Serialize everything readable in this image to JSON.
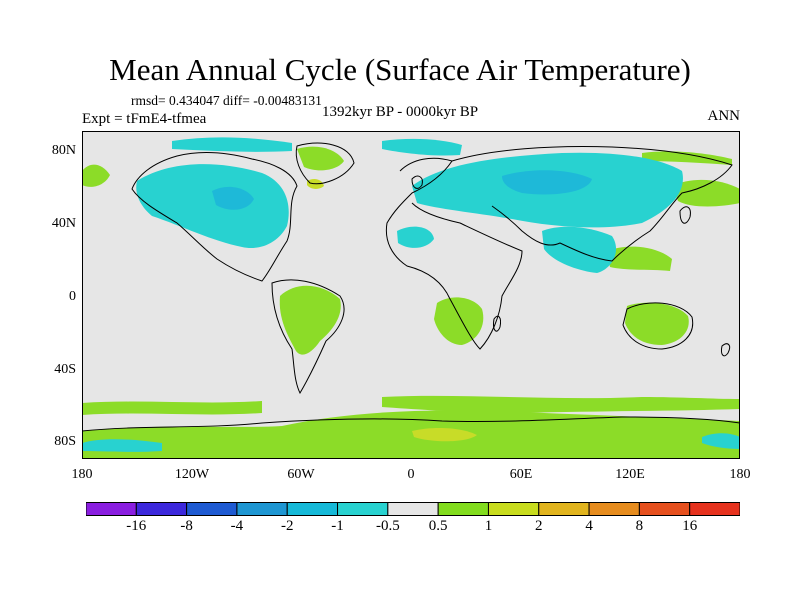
{
  "title": "Mean Annual Cycle (Surface Air Temperature)",
  "stats_text": "rmsd= 0.434047 diff= -0.00483131",
  "experiment_text": "Expt = tFmE4-tfmea",
  "period_text": "1392kyr BP - 0000kyr BP",
  "season": "ANN",
  "lat_ticks": [
    "80N",
    "40N",
    "0",
    "40S",
    "80S"
  ],
  "lon_ticks": [
    "180",
    "120W",
    "60W",
    "0",
    "60E",
    "120E",
    "180"
  ],
  "colorbar": {
    "labels": [
      "-16",
      "-8",
      "-4",
      "-2",
      "-1",
      "-0.5",
      "0.5",
      "1",
      "2",
      "4",
      "8",
      "16"
    ],
    "colors": [
      "#8a1ee0",
      "#3c28dc",
      "#1e5ad2",
      "#1e96d2",
      "#16b9d8",
      "#28d2d0",
      "#e6e6e6",
      "#82dc1e",
      "#c8dc1e",
      "#e1b41e",
      "#e68c1e",
      "#e6501e",
      "#e6321e"
    ]
  },
  "map_colors": {
    "ocean": "#e6e6e6",
    "warm": "#8cdc28",
    "warm2": "#c8dc28",
    "cool": "#28d2d0",
    "cool2": "#1eb9d8"
  }
}
